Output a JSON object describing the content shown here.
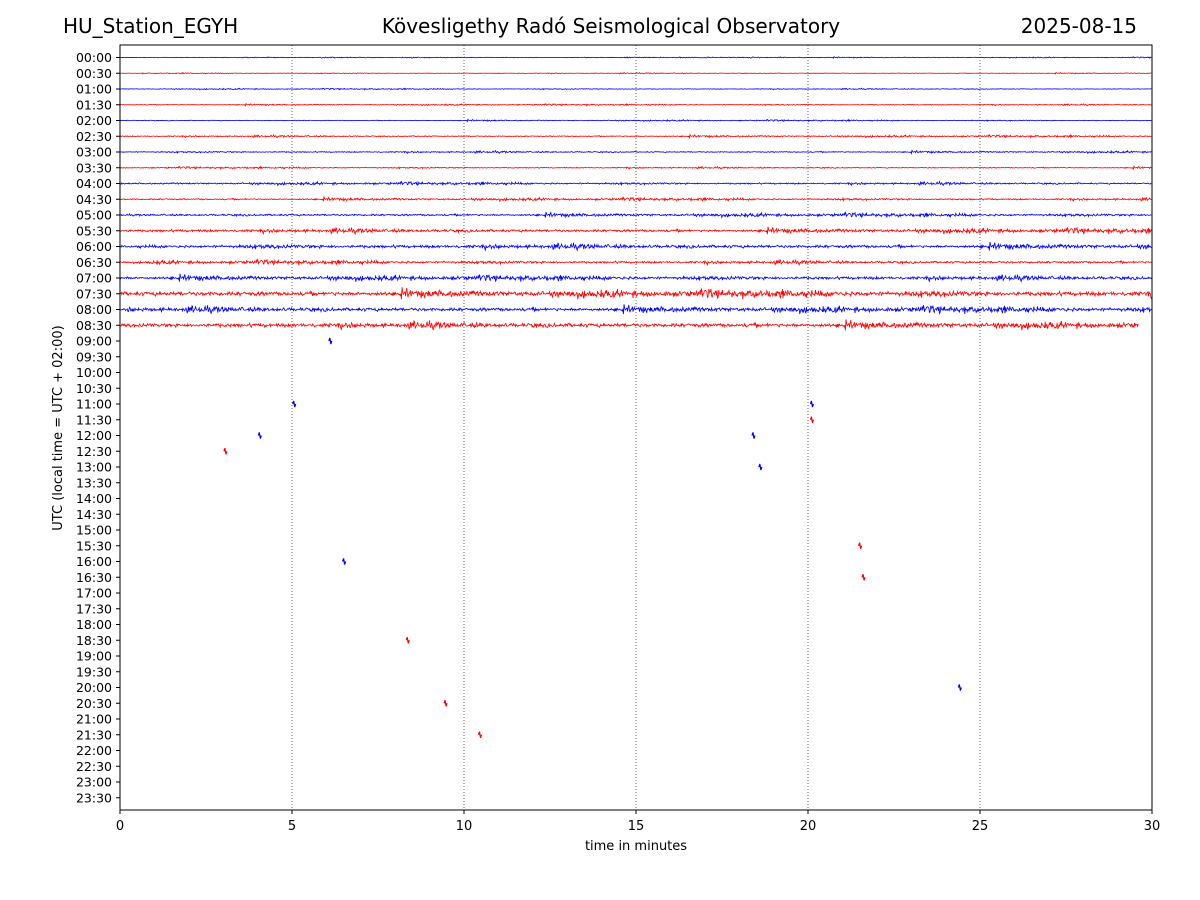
{
  "header": {
    "station": "HU_Station_EGYH",
    "observatory": "Kövesligethy Radó Seismological Observatory",
    "date": "2025-08-15"
  },
  "chart_data": {
    "type": "line",
    "title": "Kövesligethy Radó Seismological Observatory",
    "xlabel": "time in minutes",
    "ylabel": "UTC (local time = UTC + 02:00)",
    "xlim": [
      0,
      30
    ],
    "x_ticks": [
      "0",
      "5",
      "10",
      "15",
      "20",
      "25",
      "30"
    ],
    "x_grid_minutes": [
      5,
      10,
      15,
      20,
      25
    ],
    "grid_style": "vertical dotted lines",
    "row_labels": [
      "00:00",
      "00:30",
      "01:00",
      "01:30",
      "02:00",
      "02:30",
      "03:00",
      "03:30",
      "04:00",
      "04:30",
      "05:00",
      "05:30",
      "06:00",
      "06:30",
      "07:00",
      "07:30",
      "08:00",
      "08:30",
      "09:00",
      "09:30",
      "10:00",
      "10:30",
      "11:00",
      "11:30",
      "12:00",
      "12:30",
      "13:00",
      "13:30",
      "14:00",
      "14:30",
      "15:00",
      "15:30",
      "16:00",
      "16:30",
      "17:00",
      "17:30",
      "18:00",
      "18:30",
      "19:00",
      "19:30",
      "20:00",
      "20:30",
      "21:00",
      "21:30",
      "22:00",
      "22:30",
      "23:00",
      "23:30"
    ],
    "colors": {
      "even_rows": "#0000ff",
      "odd_rows": "#ff0000",
      "axis": "#000000",
      "grid": "#000000"
    },
    "traces": [
      {
        "row": "00:00",
        "start_min": 0,
        "end_min": 30,
        "noise_level": 0.25
      },
      {
        "row": "00:30",
        "start_min": 0,
        "end_min": 30,
        "noise_level": 0.25
      },
      {
        "row": "01:00",
        "start_min": 0,
        "end_min": 30,
        "noise_level": 0.3
      },
      {
        "row": "01:30",
        "start_min": 0,
        "end_min": 30,
        "noise_level": 0.35
      },
      {
        "row": "02:00",
        "start_min": 0,
        "end_min": 30,
        "noise_level": 0.35
      },
      {
        "row": "02:30",
        "start_min": 0,
        "end_min": 30,
        "noise_level": 0.5
      },
      {
        "row": "03:00",
        "start_min": 0,
        "end_min": 30,
        "noise_level": 0.5
      },
      {
        "row": "03:30",
        "start_min": 0,
        "end_min": 30,
        "noise_level": 0.45
      },
      {
        "row": "04:00",
        "start_min": 0,
        "end_min": 30,
        "noise_level": 0.7
      },
      {
        "row": "04:30",
        "start_min": 0,
        "end_min": 30,
        "noise_level": 0.7
      },
      {
        "row": "05:00",
        "start_min": 0,
        "end_min": 30,
        "noise_level": 0.9
      },
      {
        "row": "05:30",
        "start_min": 0,
        "end_min": 30,
        "noise_level": 1.2
      },
      {
        "row": "06:00",
        "start_min": 0,
        "end_min": 30,
        "noise_level": 1.4
      },
      {
        "row": "06:30",
        "start_min": 0,
        "end_min": 30,
        "noise_level": 1.0
      },
      {
        "row": "07:00",
        "start_min": 0,
        "end_min": 30,
        "noise_level": 1.3
      },
      {
        "row": "07:30",
        "start_min": 0,
        "end_min": 30,
        "noise_level": 2.0
      },
      {
        "row": "08:00",
        "start_min": 0,
        "end_min": 30,
        "noise_level": 1.6
      },
      {
        "row": "08:30",
        "start_min": 0,
        "end_min": 29.6,
        "noise_level": 1.8
      }
    ],
    "spikes": [
      {
        "row": "09:00",
        "minute": 6.1
      },
      {
        "row": "11:00",
        "minute": 5.05
      },
      {
        "row": "11:00",
        "minute": 20.1
      },
      {
        "row": "11:30",
        "minute": 20.1
      },
      {
        "row": "12:00",
        "minute": 4.05
      },
      {
        "row": "12:00",
        "minute": 18.4
      },
      {
        "row": "12:30",
        "minute": 3.05
      },
      {
        "row": "13:00",
        "minute": 18.6
      },
      {
        "row": "15:30",
        "minute": 21.5
      },
      {
        "row": "16:00",
        "minute": 6.5
      },
      {
        "row": "16:30",
        "minute": 21.6
      },
      {
        "row": "18:30",
        "minute": 8.35
      },
      {
        "row": "20:00",
        "minute": 24.4
      },
      {
        "row": "20:30",
        "minute": 9.45
      },
      {
        "row": "21:30",
        "minute": 10.45
      }
    ]
  }
}
